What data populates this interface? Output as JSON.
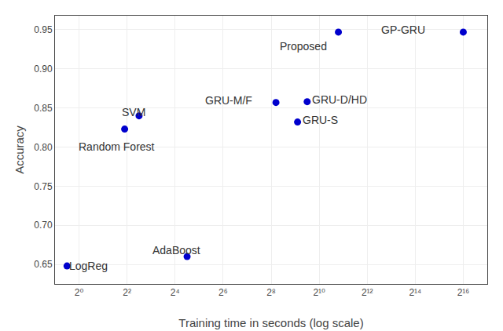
{
  "chart_data": {
    "type": "scatter",
    "log": "x",
    "xlabel": "Training time in seconds (log scale)",
    "ylabel": "Accuracy",
    "x": [
      0.7071067811865476,
      3.7321319661472296,
      5.656854249492381,
      22.627416997969522,
      294.066778879241,
      724.0773439350246,
      548.7480128185821,
      1782.887153630462,
      65536
    ],
    "values": [
      0.648,
      0.823,
      0.84,
      0.66,
      0.857,
      0.858,
      0.832,
      0.947,
      0.947
    ],
    "color": "#0000CD",
    "annotations": [
      {
        "text": "LogReg",
        "x": 0.72196459,
        "y": 0.648
      },
      {
        "text": "Random Forest",
        "x": 0.9330329915368074,
        "y": 0.801
      },
      {
        "text": "SVM",
        "x": 3.249009585424942,
        "y": 0.845
      },
      {
        "text": "AdaBoost",
        "x": 8,
        "y": 0.668
      },
      {
        "text": "GRU-M/F",
        "x": 36.75834735990512,
        "y": 0.86
      },
      {
        "text": "GRU-D/HD",
        "x": 803.4141,
        "y": 0.861
      },
      {
        "text": "GRU-S",
        "x": 608.8740428,
        "y": 0.835
      },
      {
        "text": "Proposed",
        "x": 315.1729697,
        "y": 0.929
      },
      {
        "text": "GP-GRU",
        "x": 5792.618751,
        "y": 0.95
      }
    ],
    "xlim": [
      0.5,
      131072
    ],
    "ylim": [
      0.625,
      0.968
    ],
    "xticks": [
      {
        "value": 1,
        "label": "2⁰"
      },
      {
        "value": 4,
        "label": "2²"
      },
      {
        "value": 16,
        "label": "2⁴"
      },
      {
        "value": 64,
        "label": "2⁶"
      },
      {
        "value": 256,
        "label": "2⁸"
      },
      {
        "value": 1024,
        "label": "2¹⁰"
      },
      {
        "value": 4096,
        "label": "2¹²"
      },
      {
        "value": 16384,
        "label": "2¹⁴"
      },
      {
        "value": 65536,
        "label": "2¹⁶"
      }
    ],
    "yticks": [
      0.65,
      {
        "value": 0.7,
        "label": "0.70"
      },
      0.75,
      {
        "value": 0.8,
        "label": "0.80"
      },
      0.85,
      {
        "value": 0.9,
        "label": "0.90"
      },
      0.95
    ],
    "grid": true
  }
}
